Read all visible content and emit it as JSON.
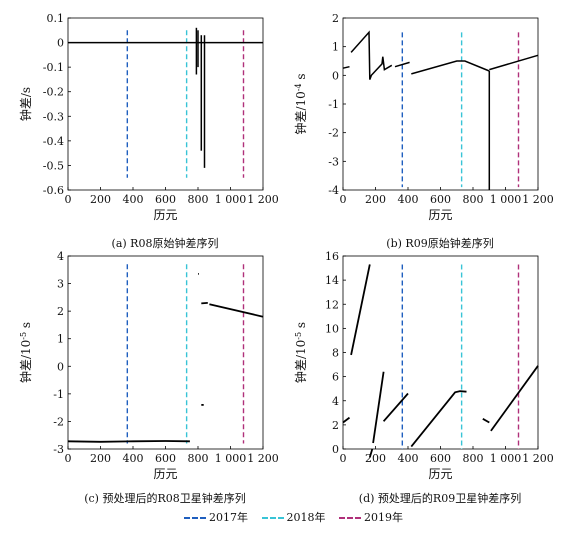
{
  "captions": {
    "a": "(a) R08原始钟差序列",
    "b": "(b) R09原始钟差序列",
    "c": "(c) 预处理后的R08卫星钟差序列",
    "d": "(d) 预处理后的R09卫星钟差序列"
  },
  "legend": [
    {
      "label": "2017年",
      "color": "#1f5fbf"
    },
    {
      "label": "2018年",
      "color": "#38c4d6"
    },
    {
      "label": "2019年",
      "color": "#b0307a"
    }
  ],
  "chart_data": [
    {
      "id": "a",
      "type": "line",
      "xlabel": "历元",
      "ylabel": "钟差/s",
      "ylabel_sup": "",
      "ylabel_unit": "",
      "xlim": [
        0,
        1200
      ],
      "ylim": [
        -0.6,
        0.1
      ],
      "xticks": [
        0,
        200,
        400,
        600,
        800,
        1000,
        1200
      ],
      "xtick_labels": [
        "0",
        "200",
        "400",
        "600",
        "800",
        "1 000",
        "1 200"
      ],
      "yticks": [
        -0.6,
        -0.5,
        -0.4,
        -0.3,
        -0.2,
        -0.1,
        0,
        0.1
      ],
      "ytick_labels": [
        "-0.6",
        "-0.5",
        "-0.4",
        "-0.3",
        "-0.2",
        "-0.1",
        "0",
        "0.1"
      ],
      "vlines": [
        {
          "x": 365,
          "y0": -0.55,
          "y1": 0.05,
          "color": "#1f5fbf"
        },
        {
          "x": 730,
          "y0": -0.55,
          "y1": 0.05,
          "color": "#38c4d6"
        },
        {
          "x": 1080,
          "y0": -0.55,
          "y1": 0.05,
          "color": "#b0307a"
        }
      ],
      "series": [
        {
          "x": [
            0,
            1200
          ],
          "y": [
            0,
            0
          ]
        },
        {
          "x": [
            790,
            790
          ],
          "y": [
            0.06,
            -0.13
          ]
        },
        {
          "x": [
            800,
            800
          ],
          "y": [
            0.05,
            -0.1
          ]
        },
        {
          "x": [
            820,
            820
          ],
          "y": [
            0.03,
            -0.44
          ]
        },
        {
          "x": [
            840,
            840
          ],
          "y": [
            0.03,
            -0.51
          ]
        }
      ]
    },
    {
      "id": "b",
      "type": "line",
      "xlabel": "历元",
      "ylabel": "钟差/10",
      "ylabel_sup": "-4",
      "ylabel_unit": " s",
      "xlim": [
        0,
        1200
      ],
      "ylim": [
        -4,
        2
      ],
      "xticks": [
        0,
        200,
        400,
        600,
        800,
        1000,
        1200
      ],
      "xtick_labels": [
        "0",
        "200",
        "400",
        "600",
        "800",
        "1 000",
        "1 200"
      ],
      "yticks": [
        -4,
        -3,
        -2,
        -1,
        0,
        1,
        2
      ],
      "ytick_labels": [
        "-4",
        "-3",
        "-2",
        "-1",
        "0",
        "1",
        "2"
      ],
      "vlines": [
        {
          "x": 365,
          "y0": -3.9,
          "y1": 1.5,
          "color": "#1f5fbf"
        },
        {
          "x": 730,
          "y0": -3.9,
          "y1": 1.5,
          "color": "#38c4d6"
        },
        {
          "x": 1080,
          "y0": -3.9,
          "y1": 1.5,
          "color": "#b0307a"
        }
      ],
      "series": [
        {
          "x": [
            0,
            40
          ],
          "y": [
            0.25,
            0.3
          ]
        },
        {
          "x": [
            50,
            160,
            165,
            175,
            240,
            245,
            255,
            300
          ],
          "y": [
            0.8,
            1.5,
            -0.15,
            0,
            0.4,
            0.65,
            0.2,
            0.35
          ]
        },
        {
          "x": [
            320,
            410
          ],
          "y": [
            0.3,
            0.45
          ]
        },
        {
          "x": [
            420,
            700,
            750,
            900
          ],
          "y": [
            0.05,
            0.5,
            0.5,
            0.15
          ]
        },
        {
          "x": [
            900,
            900
          ],
          "y": [
            0.15,
            -4
          ]
        },
        {
          "x": [
            900,
            1200
          ],
          "y": [
            0.2,
            0.7
          ]
        }
      ]
    },
    {
      "id": "c",
      "type": "scatter",
      "xlabel": "历元",
      "ylabel": "钟差/10",
      "ylabel_sup": "-5",
      "ylabel_unit": " s",
      "xlim": [
        0,
        1200
      ],
      "ylim": [
        -3,
        4
      ],
      "xticks": [
        0,
        200,
        400,
        600,
        800,
        1000,
        1200
      ],
      "xtick_labels": [
        "0",
        "200",
        "400",
        "600",
        "800",
        "1 000",
        "1 200"
      ],
      "yticks": [
        -3,
        -2,
        -1,
        0,
        1,
        2,
        3,
        4
      ],
      "ytick_labels": [
        "-3",
        "-2",
        "-1",
        "0",
        "1",
        "2",
        "3",
        "4"
      ],
      "vlines": [
        {
          "x": 365,
          "y0": -2.8,
          "y1": 3.7,
          "color": "#1f5fbf"
        },
        {
          "x": 730,
          "y0": -2.8,
          "y1": 3.7,
          "color": "#38c4d6"
        },
        {
          "x": 1080,
          "y0": -2.8,
          "y1": 3.7,
          "color": "#b0307a"
        }
      ],
      "series": [
        {
          "x": [
            0,
            200,
            400,
            600,
            750
          ],
          "y": [
            -2.72,
            -2.74,
            -2.72,
            -2.71,
            -2.72
          ]
        },
        {
          "x": [
            820,
            860
          ],
          "y": [
            2.28,
            2.3
          ]
        },
        {
          "x": [
            870,
            1200
          ],
          "y": [
            2.25,
            1.8
          ]
        },
        {
          "x": [
            820,
            835
          ],
          "y": [
            -1.4,
            -1.4
          ]
        },
        {
          "x": [
            800,
            805
          ],
          "y": [
            3.35,
            3.35
          ]
        }
      ]
    },
    {
      "id": "d",
      "type": "scatter",
      "xlabel": "历元",
      "ylabel": "钟差/10",
      "ylabel_sup": "-5",
      "ylabel_unit": " s",
      "xlim": [
        0,
        1200
      ],
      "ylim": [
        0,
        16
      ],
      "xticks": [
        0,
        200,
        400,
        600,
        800,
        1000,
        1200
      ],
      "xtick_labels": [
        "0",
        "200",
        "400",
        "600",
        "800",
        "1 000",
        "1 200"
      ],
      "yticks": [
        0,
        2,
        4,
        6,
        8,
        10,
        12,
        14,
        16
      ],
      "ytick_labels": [
        "0",
        "2",
        "4",
        "6",
        "8",
        "10",
        "12",
        "14",
        "16"
      ],
      "vlines": [
        {
          "x": 365,
          "y0": -0.5,
          "y1": 15.3,
          "color": "#1f5fbf"
        },
        {
          "x": 730,
          "y0": -0.5,
          "y1": 15.3,
          "color": "#38c4d6"
        },
        {
          "x": 1080,
          "y0": -0.5,
          "y1": 15.3,
          "color": "#b0307a"
        }
      ],
      "series": [
        {
          "x": [
            0,
            40
          ],
          "y": [
            2.2,
            2.6
          ]
        },
        {
          "x": [
            50,
            165
          ],
          "y": [
            7.8,
            15.3
          ]
        },
        {
          "x": [
            165,
            180
          ],
          "y": [
            -0.7,
            0
          ]
        },
        {
          "x": [
            185,
            250
          ],
          "y": [
            0.5,
            6.4
          ]
        },
        {
          "x": [
            250,
            400
          ],
          "y": [
            2.3,
            4.6
          ]
        },
        {
          "x": [
            420,
            690,
            720,
            760
          ],
          "y": [
            0.2,
            4.7,
            4.8,
            4.75
          ]
        },
        {
          "x": [
            860,
            900
          ],
          "y": [
            2.5,
            2.2
          ]
        },
        {
          "x": [
            910,
            1200
          ],
          "y": [
            1.5,
            6.9
          ]
        }
      ]
    }
  ]
}
